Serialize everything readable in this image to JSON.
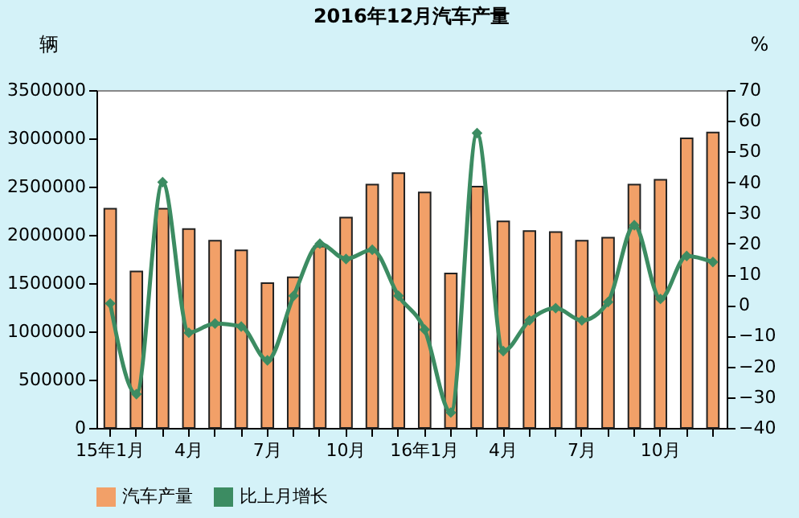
{
  "chart_data": {
    "type": "bar",
    "title": "2016年12月汽车产量",
    "categories": [
      "15年1月",
      null,
      null,
      "4月",
      null,
      null,
      "7月",
      null,
      null,
      "10月",
      null,
      null,
      "16年1月",
      null,
      null,
      "4月",
      null,
      null,
      "7月",
      null,
      null,
      "10月",
      null,
      null
    ],
    "series": [
      {
        "name": "汽车产量",
        "color": "#f2a068",
        "values": [
          2270000,
          1620000,
          2270000,
          2060000,
          1940000,
          1840000,
          1500000,
          1560000,
          1880000,
          2180000,
          2520000,
          2640000,
          2440000,
          1600000,
          2500000,
          2140000,
          2040000,
          2030000,
          1940000,
          1970000,
          2520000,
          2570000,
          3000000,
          3060000
        ]
      },
      {
        "name": "比上月增长",
        "type": "line",
        "axis": "y2",
        "color": "#3c8c62",
        "marker": "diamond",
        "values": [
          0.5,
          -29,
          40,
          -9,
          -6,
          -7,
          -18,
          3,
          20,
          15,
          18,
          3,
          -8,
          -35,
          56,
          -15,
          -5,
          -1,
          -5,
          1,
          26,
          2,
          16,
          14
        ]
      }
    ],
    "ylabel": "辆",
    "y2label": "%",
    "ylim": [
      0,
      3500000
    ],
    "yticks": [
      0,
      500000,
      1000000,
      1500000,
      2000000,
      2500000,
      3000000,
      3500000
    ],
    "y2lim": [
      -40,
      70
    ],
    "y2ticks": [
      -40,
      -30,
      -20,
      -10,
      0,
      10,
      20,
      30,
      40,
      50,
      60,
      70
    ],
    "grid": false,
    "legend": "bottom"
  }
}
